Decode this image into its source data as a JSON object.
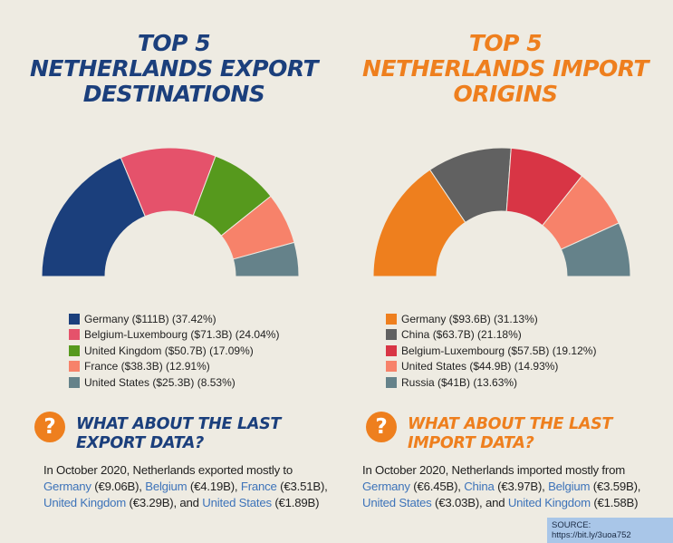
{
  "chart_data": [
    {
      "type": "pie",
      "title": "TOP 5 NETHERLANDS EXPORT DESTINATIONS",
      "title_lines": [
        "TOP 5",
        "NETHERLANDS EXPORT",
        "DESTINATIONS"
      ],
      "shape": "half-donut",
      "categories": [
        "Germany",
        "Belgium-Luxembourg",
        "United Kingdom",
        "France",
        "United States"
      ],
      "values": [
        111,
        71.3,
        50.7,
        38.3,
        25.3
      ],
      "percentages": [
        37.42,
        24.04,
        17.09,
        12.91,
        8.53
      ],
      "colors": [
        "#1b3f7c",
        "#e5526b",
        "#56991d",
        "#f7826a",
        "#65828a"
      ],
      "legend": [
        "Germany ($111B) (37.42%)",
        "Belgium-Luxembourg ($71.3B) (24.04%)",
        "United Kingdom ($50.7B) (17.09%)",
        "France ($38.3B) (12.91%)",
        "United States ($25.3B) (8.53%)"
      ]
    },
    {
      "type": "pie",
      "title": "TOP 5 NETHERLANDS IMPORT ORIGINS",
      "title_lines": [
        "TOP 5",
        "NETHERLANDS IMPORT",
        "ORIGINS"
      ],
      "shape": "half-donut",
      "categories": [
        "Germany",
        "China",
        "Belgium-Luxembourg",
        "United States",
        "Russia"
      ],
      "values": [
        93.6,
        63.7,
        57.5,
        44.9,
        41
      ],
      "percentages": [
        31.13,
        21.18,
        19.12,
        14.93,
        13.63
      ],
      "colors": [
        "#ee7f1e",
        "#616161",
        "#d83545",
        "#f7826a",
        "#65828a"
      ],
      "legend": [
        "Germany ($93.6B) (31.13%)",
        "China ($63.7B) (21.18%)",
        "Belgium-Luxembourg ($57.5B) (19.12%)",
        "United States ($44.9B) (14.93%)",
        "Russia ($41B) (13.63%)"
      ]
    }
  ],
  "export_section": {
    "title_lines": [
      "WHAT ABOUT THE LAST",
      "EXPORT DATA?"
    ],
    "icon": "question-mark-icon",
    "text": [
      {
        "t": "In October 2020, Netherlands exported mostly to "
      },
      {
        "t": "Germany",
        "hl": true
      },
      {
        "t": " (€9.06B), "
      },
      {
        "t": "Belgium",
        "hl": true
      },
      {
        "t": " (€4.19B), "
      },
      {
        "t": "France",
        "hl": true
      },
      {
        "t": " (€3.51B), "
      },
      {
        "t": "United Kingdom",
        "hl": true
      },
      {
        "t": " (€3.29B), and "
      },
      {
        "t": "United States",
        "hl": true
      },
      {
        "t": " (€1.89B)"
      }
    ]
  },
  "import_section": {
    "title_lines": [
      "WHAT ABOUT THE LAST",
      "IMPORT DATA?"
    ],
    "icon": "question-mark-icon",
    "text": [
      {
        "t": "In October 2020, Netherlands imported mostly from "
      },
      {
        "t": "Germany",
        "hl": true
      },
      {
        "t": " (€6.45B), "
      },
      {
        "t": "China",
        "hl": true
      },
      {
        "t": " (€3.97B), "
      },
      {
        "t": "Belgium",
        "hl": true
      },
      {
        "t": " (€3.59B), "
      },
      {
        "t": "United States",
        "hl": true
      },
      {
        "t": " (€3.03B), and "
      },
      {
        "t": "United Kingdom",
        "hl": true
      },
      {
        "t": " (€1.58B)"
      }
    ]
  },
  "icon_glyph": "?",
  "source": "SOURCE: https://bit.ly/3uoa752",
  "colors": {
    "navy": "#1b3f7c",
    "orange": "#ee7f1e",
    "background": "#eeebe2",
    "highlight": "#3d73b9"
  }
}
